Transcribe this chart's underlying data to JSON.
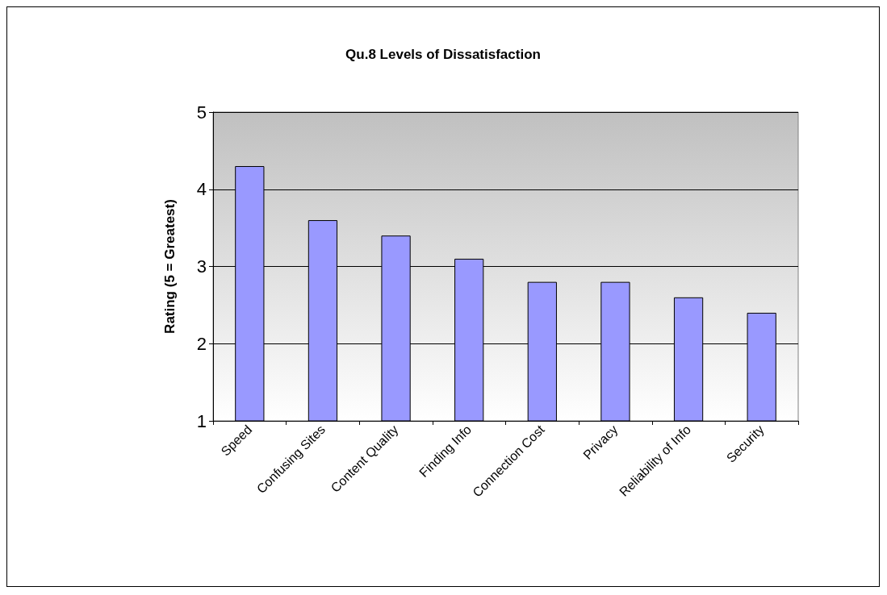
{
  "chart_data": {
    "type": "bar",
    "title": "Qu.8 Levels of Dissatisfaction",
    "ylabel": "Rating (5 = Greatest)",
    "categories": [
      "Speed",
      "Confusing Sites",
      "Content Quality",
      "Finding Info",
      "Connection Cost",
      "Privacy",
      "Reliability of Info",
      "Security"
    ],
    "values": [
      4.3,
      3.6,
      3.4,
      3.1,
      2.8,
      2.8,
      2.6,
      2.4
    ],
    "color": "#9999ff",
    "ylim": [
      1,
      5
    ],
    "yticks": [
      1,
      2,
      3,
      4,
      5
    ],
    "grid": "y"
  }
}
